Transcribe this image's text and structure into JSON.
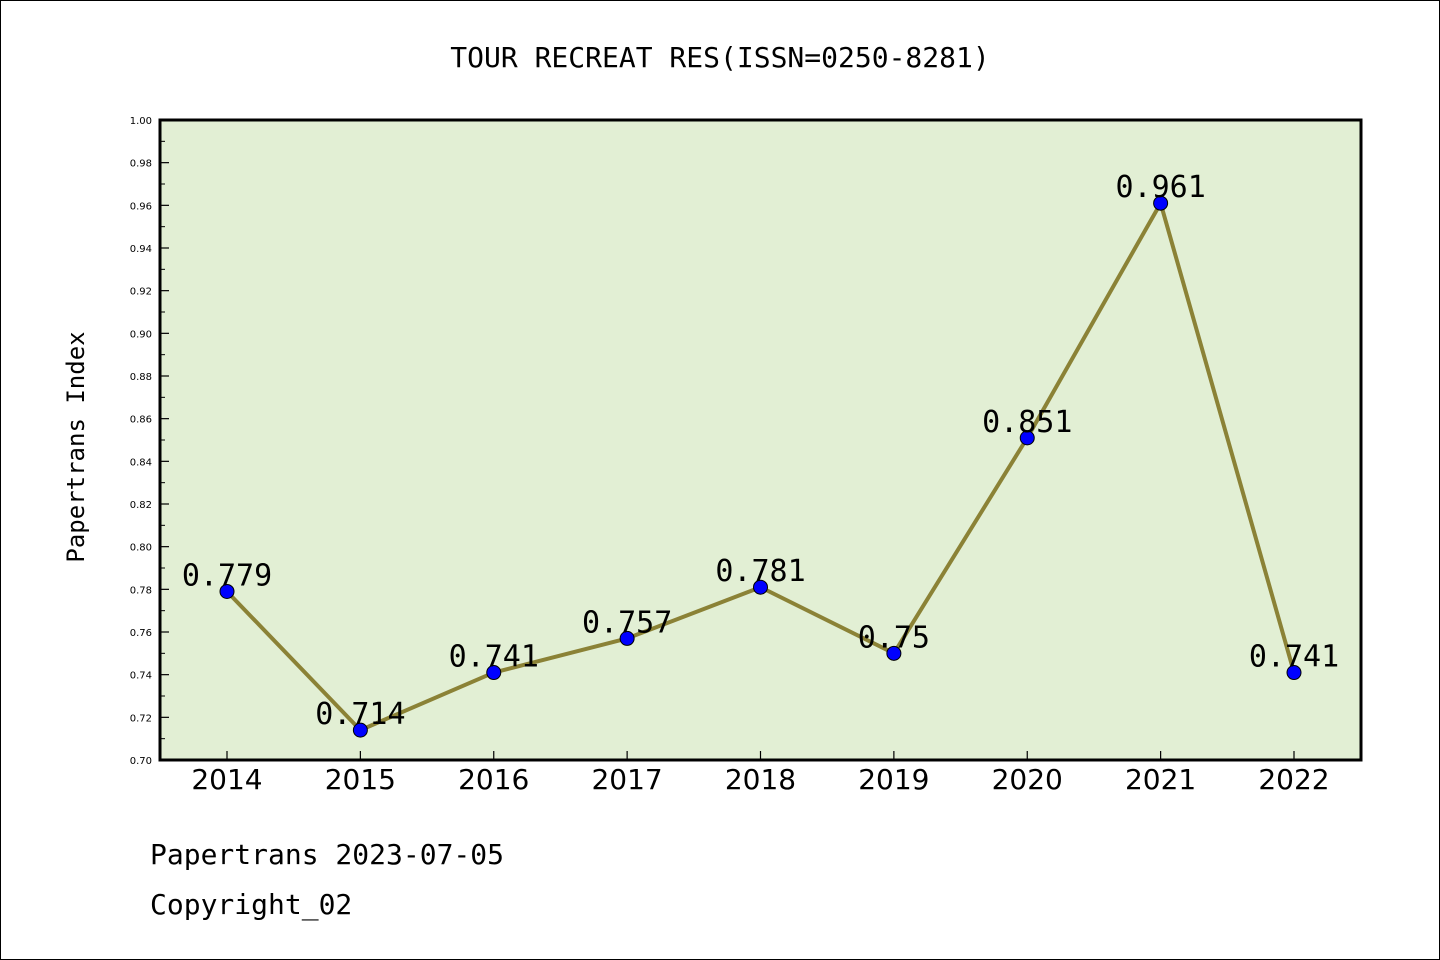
{
  "chart_data": {
    "type": "line",
    "title": "TOUR RECREAT RES(ISSN=0250-8281)",
    "ylabel": "Papertrans Index",
    "xlabel": "",
    "categories": [
      "2014",
      "2015",
      "2016",
      "2017",
      "2018",
      "2019",
      "2020",
      "2021",
      "2022"
    ],
    "series": [
      {
        "values": [
          0.779,
          0.714,
          0.741,
          0.757,
          0.781,
          0.75,
          0.851,
          0.961,
          0.741
        ],
        "labels": [
          "0.779",
          "0.714",
          "0.741",
          "0.757",
          "0.781",
          "0.75",
          "0.851",
          "0.961",
          "0.741"
        ],
        "line_color": "#8b8236",
        "marker_color": "#0000ff"
      }
    ],
    "ylim": [
      0.7,
      1.0
    ],
    "yticks": [
      "0.70",
      "0.72",
      "0.74",
      "0.76",
      "0.78",
      "0.80",
      "0.82",
      "0.84",
      "0.86",
      "0.88",
      "0.90",
      "0.92",
      "0.94",
      "0.96",
      "0.98",
      "1.00"
    ],
    "grid": false,
    "plot_background": "#e2efd4"
  },
  "footer": {
    "line1": "Papertrans 2023-07-05",
    "line2": "Copyright_02"
  }
}
